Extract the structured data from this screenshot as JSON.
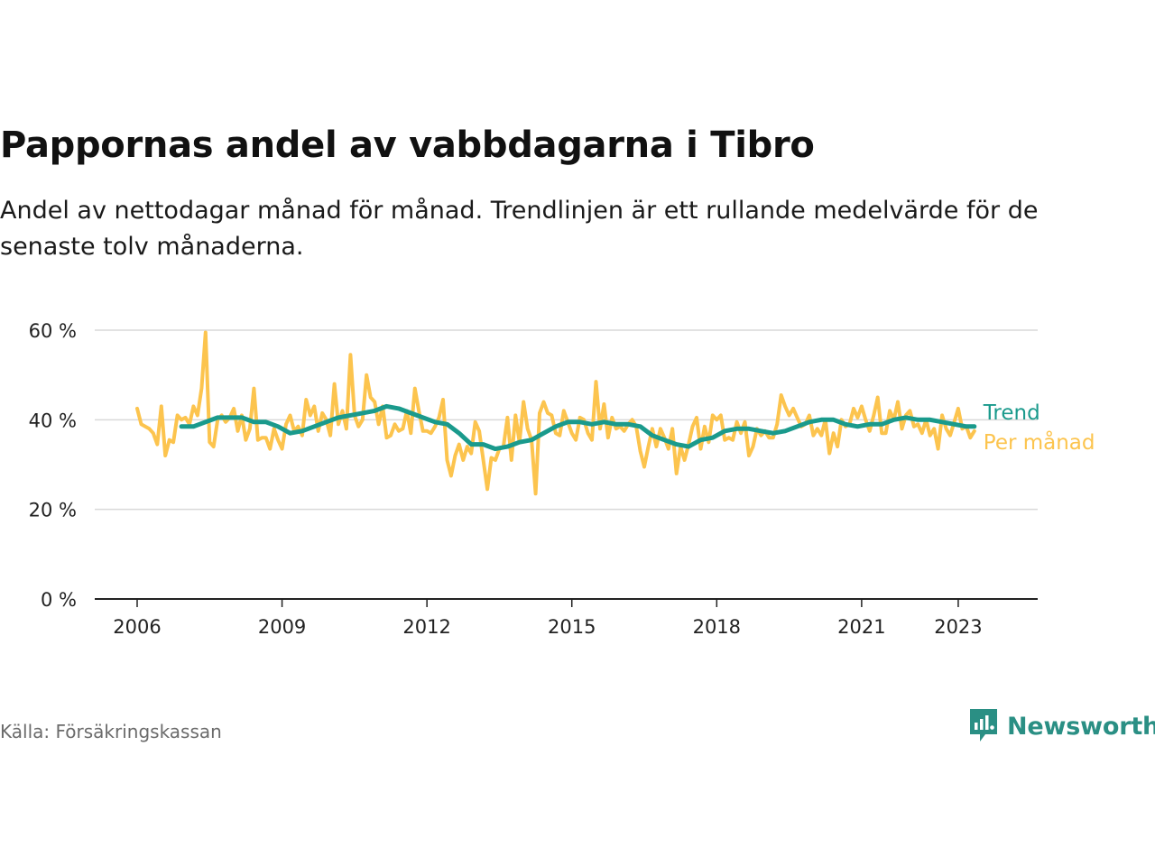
{
  "title": "Pappornas andel av vabbdagarna i Tibro",
  "subtitle": "Andel av nettodagar månad för månad. Trendlinjen är ett rullande medelvärde för de senaste tolv månaderna.",
  "source": "Källa: Försäkringskassan",
  "brand": {
    "name": "Newsworthy",
    "icon": "newsworthy-logo-icon",
    "color": "#2a8f84"
  },
  "chart_data": {
    "type": "line",
    "title": "Pappornas andel av vabbdagarna i Tibro",
    "ylim": [
      0,
      60
    ],
    "xlim": [
      "2006-01",
      "2023-12"
    ],
    "y_ticks": [
      0,
      20,
      40,
      60
    ],
    "y_tick_labels": [
      "0 %",
      "20 %",
      "40 %",
      "60 %"
    ],
    "x_ticks": [
      "2006-01",
      "2009-01",
      "2012-01",
      "2015-01",
      "2018-01",
      "2021-01",
      "2023-01"
    ],
    "x_tick_labels": [
      "2006",
      "2009",
      "2012",
      "2015",
      "2018",
      "2021",
      "2023"
    ],
    "grid": "horizontal",
    "legend": "inline labels at right end of lines",
    "series": [
      {
        "name": "Per månad",
        "color": "#fcc44e",
        "points": [
          [
            "2006-01",
            42.5
          ],
          [
            "2006-02",
            39
          ],
          [
            "2006-03",
            38.5
          ],
          [
            "2006-04",
            38
          ],
          [
            "2006-05",
            37
          ],
          [
            "2006-06",
            34.5
          ],
          [
            "2006-07",
            43
          ],
          [
            "2006-08",
            32
          ],
          [
            "2006-09",
            35.5
          ],
          [
            "2006-10",
            35
          ],
          [
            "2006-11",
            41
          ],
          [
            "2006-12",
            40
          ],
          [
            "2007-01",
            40.5
          ],
          [
            "2007-02",
            39
          ],
          [
            "2007-03",
            43
          ],
          [
            "2007-04",
            41
          ],
          [
            "2007-05",
            47
          ],
          [
            "2007-06",
            59.5
          ],
          [
            "2007-07",
            35
          ],
          [
            "2007-08",
            34
          ],
          [
            "2007-09",
            40
          ],
          [
            "2007-10",
            41
          ],
          [
            "2007-11",
            39.5
          ],
          [
            "2007-12",
            40.5
          ],
          [
            "2008-01",
            42.5
          ],
          [
            "2008-02",
            37.5
          ],
          [
            "2008-03",
            41
          ],
          [
            "2008-04",
            35.5
          ],
          [
            "2008-05",
            38
          ],
          [
            "2008-06",
            47
          ],
          [
            "2008-07",
            35.5
          ],
          [
            "2008-08",
            36
          ],
          [
            "2008-09",
            36
          ],
          [
            "2008-10",
            33.5
          ],
          [
            "2008-11",
            38
          ],
          [
            "2008-12",
            35.5
          ],
          [
            "2009-01",
            33.5
          ],
          [
            "2009-02",
            39
          ],
          [
            "2009-03",
            41
          ],
          [
            "2009-04",
            37.5
          ],
          [
            "2009-05",
            38.5
          ],
          [
            "2009-06",
            36.5
          ],
          [
            "2009-07",
            44.5
          ],
          [
            "2009-08",
            41
          ],
          [
            "2009-09",
            43
          ],
          [
            "2009-10",
            37.5
          ],
          [
            "2009-11",
            41.5
          ],
          [
            "2009-12",
            40
          ],
          [
            "2010-01",
            36.5
          ],
          [
            "2010-02",
            48
          ],
          [
            "2010-03",
            39
          ],
          [
            "2010-04",
            42
          ],
          [
            "2010-05",
            38
          ],
          [
            "2010-06",
            54.5
          ],
          [
            "2010-07",
            41
          ],
          [
            "2010-08",
            38.5
          ],
          [
            "2010-09",
            40
          ],
          [
            "2010-10",
            50
          ],
          [
            "2010-11",
            45
          ],
          [
            "2010-12",
            44
          ],
          [
            "2011-01",
            39
          ],
          [
            "2011-02",
            43
          ],
          [
            "2011-03",
            36
          ],
          [
            "2011-04",
            36.5
          ],
          [
            "2011-05",
            39
          ],
          [
            "2011-06",
            37.5
          ],
          [
            "2011-07",
            38
          ],
          [
            "2011-08",
            42
          ],
          [
            "2011-09",
            37
          ],
          [
            "2011-10",
            47
          ],
          [
            "2011-11",
            42
          ],
          [
            "2011-12",
            37.5
          ],
          [
            "2012-01",
            37.5
          ],
          [
            "2012-02",
            37
          ],
          [
            "2012-03",
            38.5
          ],
          [
            "2012-04",
            40.5
          ],
          [
            "2012-05",
            44.5
          ],
          [
            "2012-06",
            31
          ],
          [
            "2012-07",
            27.5
          ],
          [
            "2012-08",
            32
          ],
          [
            "2012-09",
            34.5
          ],
          [
            "2012-10",
            31
          ],
          [
            "2012-11",
            34
          ],
          [
            "2012-12",
            32.5
          ],
          [
            "2013-01",
            39.5
          ],
          [
            "2013-02",
            37.5
          ],
          [
            "2013-03",
            31
          ],
          [
            "2013-04",
            24.5
          ],
          [
            "2013-05",
            31.5
          ],
          [
            "2013-06",
            31
          ],
          [
            "2013-07",
            33.5
          ],
          [
            "2013-08",
            34
          ],
          [
            "2013-09",
            40.5
          ],
          [
            "2013-10",
            31
          ],
          [
            "2013-11",
            41
          ],
          [
            "2013-12",
            35
          ],
          [
            "2014-01",
            44
          ],
          [
            "2014-02",
            38
          ],
          [
            "2014-03",
            35.5
          ],
          [
            "2014-04",
            23.5
          ],
          [
            "2014-05",
            41.5
          ],
          [
            "2014-06",
            44
          ],
          [
            "2014-07",
            41.5
          ],
          [
            "2014-08",
            41
          ],
          [
            "2014-09",
            37
          ],
          [
            "2014-10",
            36.5
          ],
          [
            "2014-11",
            42
          ],
          [
            "2014-12",
            39.5
          ],
          [
            "2015-01",
            37
          ],
          [
            "2015-02",
            35.5
          ],
          [
            "2015-03",
            40.5
          ],
          [
            "2015-04",
            40
          ],
          [
            "2015-05",
            37
          ],
          [
            "2015-06",
            35.5
          ],
          [
            "2015-07",
            48.5
          ],
          [
            "2015-08",
            38
          ],
          [
            "2015-09",
            43.5
          ],
          [
            "2015-10",
            36
          ],
          [
            "2015-11",
            40.5
          ],
          [
            "2015-12",
            38
          ],
          [
            "2016-01",
            38.5
          ],
          [
            "2016-02",
            37.5
          ],
          [
            "2016-03",
            39
          ],
          [
            "2016-04",
            40
          ],
          [
            "2016-05",
            38.5
          ],
          [
            "2016-06",
            33
          ],
          [
            "2016-07",
            29.5
          ],
          [
            "2016-08",
            34
          ],
          [
            "2016-09",
            38
          ],
          [
            "2016-10",
            34
          ],
          [
            "2016-11",
            38
          ],
          [
            "2016-12",
            36
          ],
          [
            "2017-01",
            33.5
          ],
          [
            "2017-02",
            38
          ],
          [
            "2017-03",
            28
          ],
          [
            "2017-04",
            34
          ],
          [
            "2017-05",
            31
          ],
          [
            "2017-06",
            34.5
          ],
          [
            "2017-07",
            38.5
          ],
          [
            "2017-08",
            40.5
          ],
          [
            "2017-09",
            33.5
          ],
          [
            "2017-10",
            38.5
          ],
          [
            "2017-11",
            35
          ],
          [
            "2017-12",
            41
          ],
          [
            "2018-01",
            40
          ],
          [
            "2018-02",
            41
          ],
          [
            "2018-03",
            35.5
          ],
          [
            "2018-04",
            36
          ],
          [
            "2018-05",
            35.5
          ],
          [
            "2018-06",
            39.5
          ],
          [
            "2018-07",
            37
          ],
          [
            "2018-08",
            39.5
          ],
          [
            "2018-09",
            32
          ],
          [
            "2018-10",
            34
          ],
          [
            "2018-11",
            38
          ],
          [
            "2018-12",
            36.5
          ],
          [
            "2019-01",
            37.5
          ],
          [
            "2019-02",
            36
          ],
          [
            "2019-03",
            36
          ],
          [
            "2019-04",
            39
          ],
          [
            "2019-05",
            45.5
          ],
          [
            "2019-06",
            43
          ],
          [
            "2019-07",
            41
          ],
          [
            "2019-08",
            42.5
          ],
          [
            "2019-09",
            40.5
          ],
          [
            "2019-10",
            38.5
          ],
          [
            "2019-11",
            39
          ],
          [
            "2019-12",
            41
          ],
          [
            "2020-01",
            36.5
          ],
          [
            "2020-02",
            38
          ],
          [
            "2020-03",
            36.5
          ],
          [
            "2020-04",
            40
          ],
          [
            "2020-05",
            32.5
          ],
          [
            "2020-06",
            37
          ],
          [
            "2020-07",
            34
          ],
          [
            "2020-08",
            40
          ],
          [
            "2020-09",
            38.5
          ],
          [
            "2020-10",
            39
          ],
          [
            "2020-11",
            42.5
          ],
          [
            "2020-12",
            40.5
          ],
          [
            "2021-01",
            43
          ],
          [
            "2021-02",
            40
          ],
          [
            "2021-03",
            37.5
          ],
          [
            "2021-04",
            41
          ],
          [
            "2021-05",
            45
          ],
          [
            "2021-06",
            37
          ],
          [
            "2021-07",
            37
          ],
          [
            "2021-08",
            42
          ],
          [
            "2021-09",
            40
          ],
          [
            "2021-10",
            44
          ],
          [
            "2021-11",
            38
          ],
          [
            "2021-12",
            41
          ],
          [
            "2022-01",
            42
          ],
          [
            "2022-02",
            38.5
          ],
          [
            "2022-03",
            39
          ],
          [
            "2022-04",
            37
          ],
          [
            "2022-05",
            40
          ],
          [
            "2022-06",
            36.5
          ],
          [
            "2022-07",
            38
          ],
          [
            "2022-08",
            33.5
          ],
          [
            "2022-09",
            41
          ],
          [
            "2022-10",
            38
          ],
          [
            "2022-11",
            36.5
          ],
          [
            "2022-12",
            39.5
          ],
          [
            "2023-01",
            42.5
          ],
          [
            "2023-02",
            38
          ],
          [
            "2023-03",
            38.5
          ],
          [
            "2023-04",
            36
          ],
          [
            "2023-05",
            37.5
          ]
        ]
      },
      {
        "name": "Trend",
        "color": "#1a9a8c",
        "points": [
          [
            "2006-12",
            38.5
          ],
          [
            "2007-03",
            38.5
          ],
          [
            "2007-06",
            39.5
          ],
          [
            "2007-09",
            40.5
          ],
          [
            "2007-12",
            40.5
          ],
          [
            "2008-03",
            40.5
          ],
          [
            "2008-06",
            39.5
          ],
          [
            "2008-09",
            39.5
          ],
          [
            "2008-12",
            38.5
          ],
          [
            "2009-03",
            37
          ],
          [
            "2009-06",
            37.5
          ],
          [
            "2009-09",
            38.5
          ],
          [
            "2009-12",
            39.5
          ],
          [
            "2010-03",
            40.5
          ],
          [
            "2010-06",
            41
          ],
          [
            "2010-09",
            41.5
          ],
          [
            "2010-12",
            42
          ],
          [
            "2011-03",
            43
          ],
          [
            "2011-06",
            42.5
          ],
          [
            "2011-09",
            41.5
          ],
          [
            "2011-12",
            40.5
          ],
          [
            "2012-03",
            39.5
          ],
          [
            "2012-06",
            39
          ],
          [
            "2012-09",
            37
          ],
          [
            "2012-12",
            34.5
          ],
          [
            "2013-03",
            34.5
          ],
          [
            "2013-06",
            33.5
          ],
          [
            "2013-09",
            34
          ],
          [
            "2013-12",
            35
          ],
          [
            "2014-03",
            35.5
          ],
          [
            "2014-06",
            37
          ],
          [
            "2014-09",
            38.5
          ],
          [
            "2014-12",
            39.5
          ],
          [
            "2015-03",
            39.5
          ],
          [
            "2015-06",
            39
          ],
          [
            "2015-09",
            39.5
          ],
          [
            "2015-12",
            39
          ],
          [
            "2016-03",
            39
          ],
          [
            "2016-06",
            38.5
          ],
          [
            "2016-09",
            36.5
          ],
          [
            "2016-12",
            35.5
          ],
          [
            "2017-03",
            34.5
          ],
          [
            "2017-06",
            34
          ],
          [
            "2017-09",
            35.5
          ],
          [
            "2017-12",
            36
          ],
          [
            "2018-03",
            37.5
          ],
          [
            "2018-06",
            38
          ],
          [
            "2018-09",
            38
          ],
          [
            "2018-12",
            37.5
          ],
          [
            "2019-03",
            37
          ],
          [
            "2019-06",
            37.5
          ],
          [
            "2019-09",
            38.5
          ],
          [
            "2019-12",
            39.5
          ],
          [
            "2020-03",
            40
          ],
          [
            "2020-06",
            40
          ],
          [
            "2020-09",
            39
          ],
          [
            "2020-12",
            38.5
          ],
          [
            "2021-03",
            39
          ],
          [
            "2021-06",
            39
          ],
          [
            "2021-09",
            40
          ],
          [
            "2021-12",
            40.5
          ],
          [
            "2022-03",
            40
          ],
          [
            "2022-06",
            40
          ],
          [
            "2022-09",
            39.5
          ],
          [
            "2022-12",
            39
          ],
          [
            "2023-03",
            38.5
          ],
          [
            "2023-05",
            38.5
          ]
        ]
      }
    ]
  }
}
